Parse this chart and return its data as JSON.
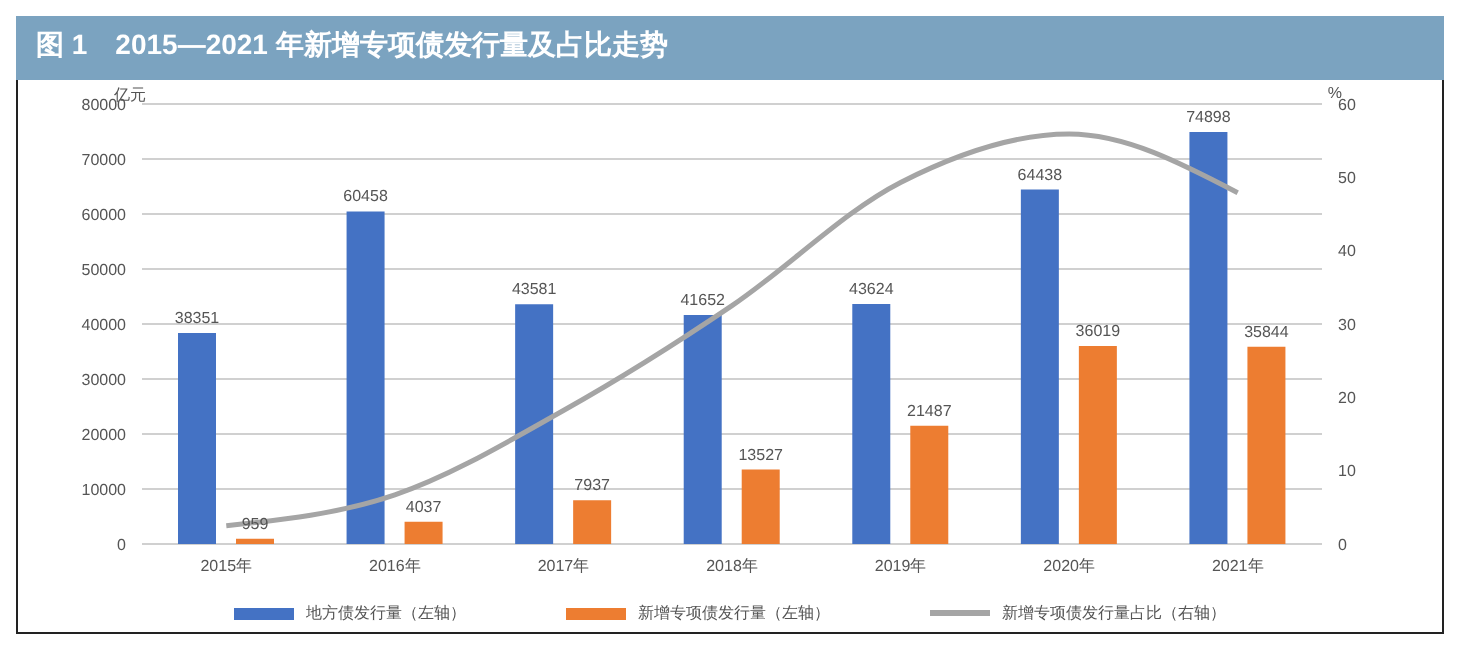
{
  "chart_data": {
    "type": "bar",
    "title": "图 1　2015—2021 年新增专项债发行量及占比走势",
    "ylabel": "亿元",
    "y2label": "%",
    "categories": [
      "2015年",
      "2016年",
      "2017年",
      "2018年",
      "2019年",
      "2020年",
      "2021年"
    ],
    "series": [
      {
        "name": "地方债发行量（左轴）",
        "color": "#4472c4",
        "values": [
          38351,
          60458,
          43581,
          41652,
          43624,
          64438,
          74898
        ],
        "value_labels": [
          "38351",
          "60458",
          "43581",
          "41652",
          "43624",
          "64438",
          "74898"
        ]
      },
      {
        "name": "新增专项债发行量（左轴）",
        "color": "#ed7d31",
        "values": [
          959,
          4037,
          7937,
          13527,
          21487,
          36019,
          35844
        ],
        "value_labels": [
          "959",
          "4037",
          "7937",
          "13527",
          "21487",
          "36019",
          "35844"
        ]
      },
      {
        "name": "新增专项债发行量占比（右轴）",
        "type": "line",
        "axis": "y2",
        "color": "#a5a5a5",
        "values": [
          2.5,
          6.7,
          18.2,
          32.5,
          49.3,
          55.9,
          47.9
        ]
      }
    ],
    "ylim": [
      0,
      80000
    ],
    "yticks": [
      0,
      10000,
      20000,
      30000,
      40000,
      50000,
      60000,
      70000,
      80000
    ],
    "y2lim": [
      0,
      60
    ],
    "y2ticks": [
      0,
      10,
      20,
      30,
      40,
      50,
      60
    ],
    "grid": "y",
    "legend": "bottom",
    "marker": "none"
  }
}
